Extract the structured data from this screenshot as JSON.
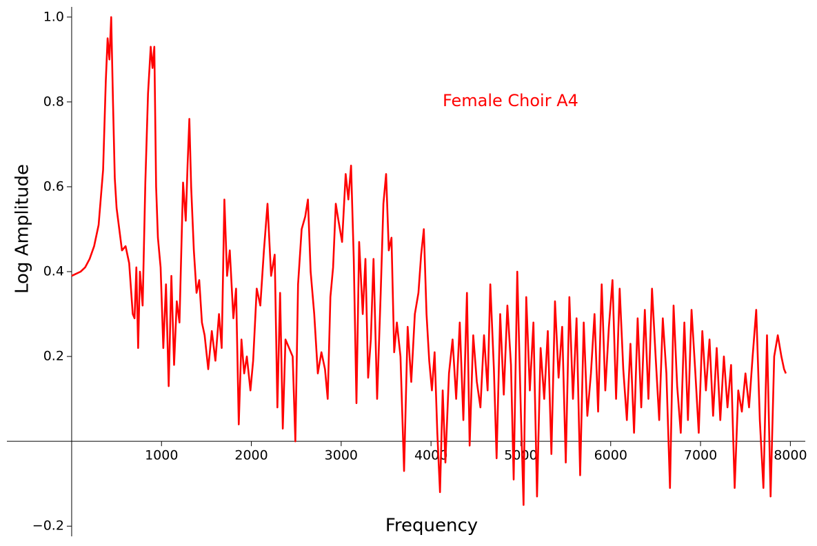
{
  "chart_data": {
    "type": "line",
    "xlabel": "Frequency",
    "ylabel": "Log Amplitude",
    "annotation": "Female Choir A4",
    "color": "#ff0000",
    "x": [
      0,
      50,
      100,
      150,
      200,
      250,
      300,
      350,
      380,
      400,
      420,
      440,
      460,
      480,
      500,
      530,
      560,
      600,
      640,
      680,
      700,
      720,
      740,
      760,
      790,
      820,
      850,
      880,
      900,
      920,
      940,
      960,
      990,
      1020,
      1050,
      1080,
      1110,
      1140,
      1170,
      1200,
      1240,
      1270,
      1290,
      1310,
      1330,
      1360,
      1390,
      1420,
      1450,
      1480,
      1520,
      1560,
      1600,
      1640,
      1670,
      1700,
      1730,
      1760,
      1800,
      1830,
      1860,
      1890,
      1920,
      1950,
      1990,
      2020,
      2060,
      2100,
      2140,
      2180,
      2220,
      2260,
      2290,
      2320,
      2350,
      2380,
      2420,
      2460,
      2490,
      2520,
      2560,
      2600,
      2630,
      2660,
      2700,
      2740,
      2780,
      2820,
      2850,
      2880,
      2910,
      2940,
      2970,
      3010,
      3050,
      3080,
      3110,
      3140,
      3170,
      3200,
      3240,
      3270,
      3300,
      3330,
      3360,
      3400,
      3440,
      3470,
      3500,
      3530,
      3560,
      3590,
      3620,
      3660,
      3700,
      3740,
      3780,
      3820,
      3860,
      3890,
      3920,
      3950,
      3980,
      4010,
      4040,
      4070,
      4100,
      4130,
      4160,
      4200,
      4240,
      4280,
      4320,
      4360,
      4400,
      4430,
      4470,
      4510,
      4550,
      4590,
      4630,
      4660,
      4700,
      4730,
      4770,
      4810,
      4850,
      4890,
      4920,
      4960,
      5000,
      5030,
      5060,
      5100,
      5140,
      5180,
      5220,
      5260,
      5300,
      5340,
      5380,
      5420,
      5460,
      5500,
      5540,
      5580,
      5620,
      5660,
      5700,
      5740,
      5780,
      5820,
      5860,
      5900,
      5940,
      5980,
      6020,
      6060,
      6100,
      6140,
      6180,
      6220,
      6260,
      6300,
      6340,
      6380,
      6420,
      6460,
      6500,
      6540,
      6580,
      6620,
      6660,
      6700,
      6740,
      6780,
      6820,
      6860,
      6900,
      6940,
      6980,
      7020,
      7060,
      7100,
      7140,
      7180,
      7220,
      7260,
      7300,
      7340,
      7380,
      7420,
      7460,
      7500,
      7540,
      7580,
      7620,
      7660,
      7700,
      7740,
      7780,
      7820,
      7860,
      7900,
      7930,
      7950
    ],
    "values": [
      0.39,
      0.395,
      0.4,
      0.41,
      0.43,
      0.46,
      0.51,
      0.64,
      0.85,
      0.95,
      0.9,
      1.0,
      0.8,
      0.62,
      0.55,
      0.5,
      0.45,
      0.46,
      0.42,
      0.3,
      0.29,
      0.41,
      0.22,
      0.4,
      0.32,
      0.61,
      0.82,
      0.93,
      0.88,
      0.93,
      0.6,
      0.48,
      0.41,
      0.22,
      0.37,
      0.13,
      0.39,
      0.18,
      0.33,
      0.28,
      0.61,
      0.52,
      0.65,
      0.76,
      0.6,
      0.45,
      0.35,
      0.38,
      0.28,
      0.25,
      0.17,
      0.26,
      0.19,
      0.3,
      0.22,
      0.57,
      0.39,
      0.45,
      0.29,
      0.36,
      0.04,
      0.24,
      0.16,
      0.2,
      0.12,
      0.19,
      0.36,
      0.32,
      0.45,
      0.56,
      0.39,
      0.44,
      0.08,
      0.35,
      0.03,
      0.24,
      0.22,
      0.2,
      0.0,
      0.37,
      0.5,
      0.53,
      0.57,
      0.4,
      0.3,
      0.16,
      0.21,
      0.17,
      0.1,
      0.34,
      0.41,
      0.56,
      0.52,
      0.47,
      0.63,
      0.57,
      0.65,
      0.43,
      0.09,
      0.47,
      0.3,
      0.43,
      0.15,
      0.24,
      0.43,
      0.1,
      0.35,
      0.56,
      0.63,
      0.45,
      0.48,
      0.21,
      0.28,
      0.2,
      -0.07,
      0.27,
      0.14,
      0.3,
      0.35,
      0.44,
      0.5,
      0.3,
      0.19,
      0.12,
      0.21,
      0.02,
      -0.12,
      0.12,
      -0.05,
      0.16,
      0.24,
      0.1,
      0.28,
      0.05,
      0.35,
      -0.01,
      0.25,
      0.14,
      0.08,
      0.25,
      0.12,
      0.37,
      0.17,
      -0.04,
      0.3,
      0.11,
      0.32,
      0.18,
      -0.09,
      0.4,
      0.07,
      -0.15,
      0.34,
      0.12,
      0.28,
      -0.13,
      0.22,
      0.1,
      0.26,
      -0.03,
      0.33,
      0.15,
      0.27,
      -0.05,
      0.34,
      0.1,
      0.29,
      -0.08,
      0.28,
      0.06,
      0.16,
      0.3,
      0.07,
      0.37,
      0.12,
      0.27,
      0.38,
      0.1,
      0.36,
      0.17,
      0.05,
      0.23,
      0.02,
      0.29,
      0.08,
      0.31,
      0.1,
      0.36,
      0.2,
      0.05,
      0.29,
      0.16,
      -0.11,
      0.32,
      0.13,
      0.02,
      0.28,
      0.05,
      0.31,
      0.17,
      0.02,
      0.26,
      0.12,
      0.24,
      0.06,
      0.22,
      0.05,
      0.2,
      0.08,
      0.18,
      -0.11,
      0.12,
      0.07,
      0.16,
      0.08,
      0.2,
      0.31,
      0.05,
      -0.11,
      0.25,
      -0.13,
      0.2,
      0.25,
      0.2,
      0.17,
      0.16
    ],
    "xlim": [
      -721,
      8166
    ],
    "ylim": [
      -0.224,
      1.024
    ],
    "xticks": [
      1000,
      2000,
      3000,
      4000,
      5000,
      6000,
      7000,
      8000
    ],
    "yticks": [
      {
        "value": -0.2,
        "label": "−0.2"
      },
      0.2,
      0.4,
      0.6,
      0.8,
      {
        "value": 1,
        "label": "1.0"
      }
    ],
    "grid": false
  }
}
